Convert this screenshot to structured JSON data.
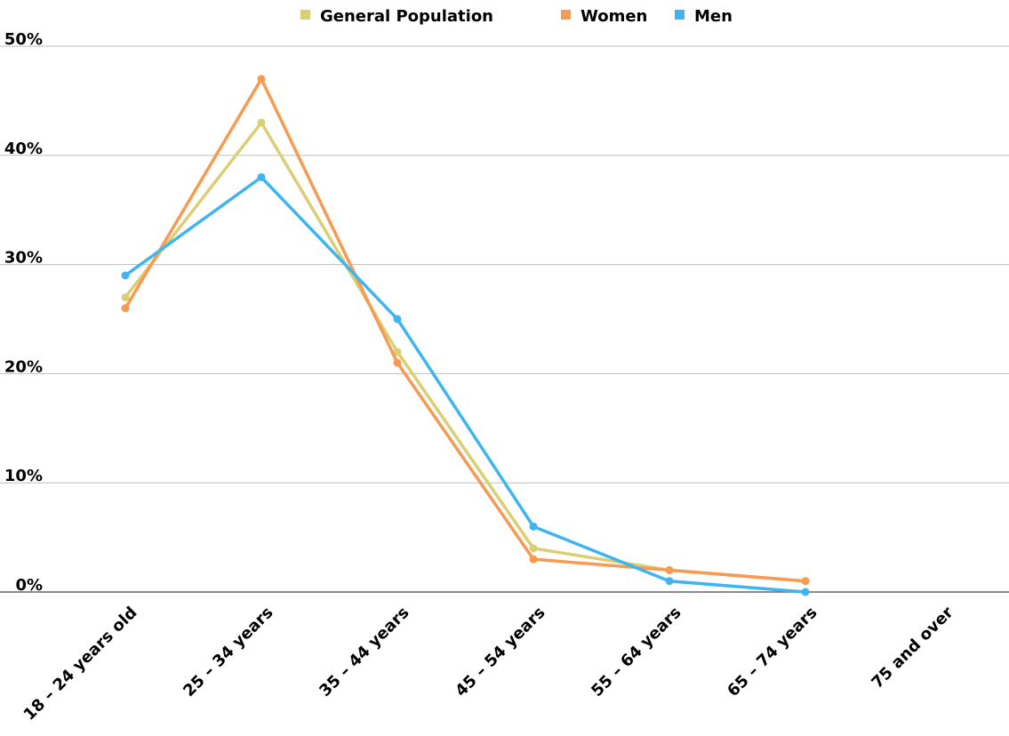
{
  "chart_data": {
    "type": "line",
    "title": "",
    "xlabel": "",
    "ylabel": "",
    "categories": [
      "18 – 24 years old",
      "25 – 34 years",
      "35 – 44 years",
      "45 – 54 years",
      "55 – 64 years",
      "65 – 74 years",
      "75 and over"
    ],
    "series": [
      {
        "name": "General Population",
        "color": "#d9cf73",
        "values": [
          27,
          43,
          22,
          4,
          2,
          1,
          null
        ]
      },
      {
        "name": "Women",
        "color": "#f79a52",
        "values": [
          26,
          47,
          21,
          3,
          2,
          1,
          null
        ]
      },
      {
        "name": "Men",
        "color": "#3eb5f1",
        "values": [
          29,
          38,
          25,
          6,
          1,
          0,
          null
        ]
      }
    ],
    "ylim": [
      0,
      50
    ],
    "yticks": [
      0,
      10,
      20,
      30,
      40,
      50
    ],
    "ytick_labels": [
      "0%",
      "10%",
      "20%",
      "30%",
      "40%",
      "50%"
    ],
    "grid": true,
    "legend_position": "top-center"
  }
}
